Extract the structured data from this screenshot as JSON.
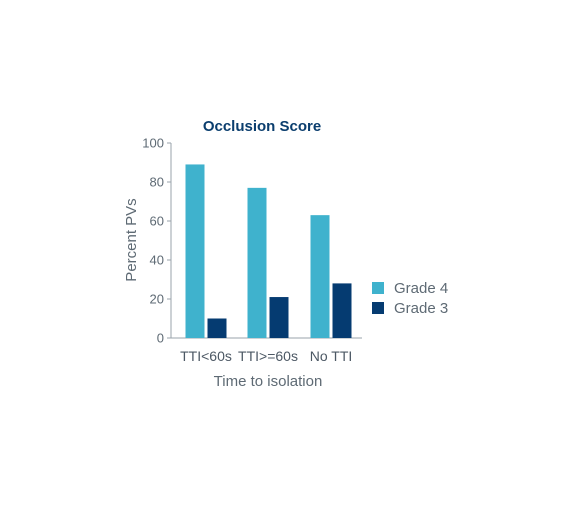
{
  "chart_data": {
    "type": "bar",
    "title": "Occlusion Score",
    "xlabel": "Time to isolation",
    "ylabel": "Percent PVs",
    "categories": [
      "TTI<60s",
      "TTI>=60s",
      "No TTI"
    ],
    "series": [
      {
        "name": "Grade 4",
        "values": [
          89,
          77,
          63
        ],
        "color": "#3fb2cd"
      },
      {
        "name": "Grade 3",
        "values": [
          10,
          21,
          28
        ],
        "color": "#053b71"
      }
    ],
    "ylim": [
      0,
      100
    ],
    "yticks": [
      0,
      20,
      40,
      60,
      80,
      100
    ],
    "grid": false,
    "legend_position": "right"
  },
  "colors": {
    "title": "#0b3e6e",
    "axis": "#9aa3ab",
    "text": "#5e6a74"
  }
}
